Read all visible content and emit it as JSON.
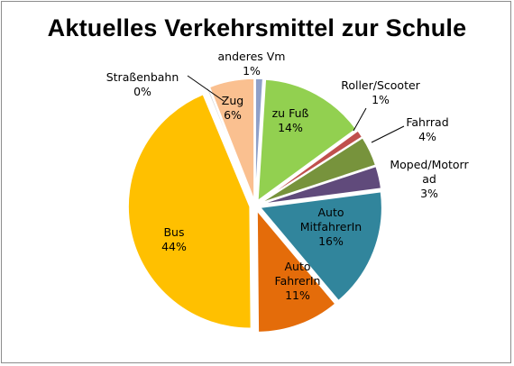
{
  "chart_data": {
    "type": "pie",
    "title": "Aktuelles Verkehrsmittel zur Schule",
    "slices": [
      {
        "name": "anderes Vm",
        "label_lines": [
          "anderes Vm"
        ],
        "pct_label": "1%",
        "value": 1,
        "color": "#8FA0C8"
      },
      {
        "name": "zu Fuß",
        "label_lines": [
          "zu Fuß"
        ],
        "pct_label": "14%",
        "value": 14,
        "color": "#92D050"
      },
      {
        "name": "Roller/Scooter",
        "label_lines": [
          "Roller/Scooter"
        ],
        "pct_label": "1%",
        "value": 1,
        "color": "#C0504D"
      },
      {
        "name": "Fahrrad",
        "label_lines": [
          "Fahrrad"
        ],
        "pct_label": "4%",
        "value": 4,
        "color": "#77933C"
      },
      {
        "name": "Moped/Motorrad",
        "label_lines": [
          "Moped/Motorr",
          "ad"
        ],
        "pct_label": "3%",
        "value": 3,
        "color": "#604A7B"
      },
      {
        "name": "Auto MitfahrerIn",
        "label_lines": [
          "Auto",
          "MitfahrerIn"
        ],
        "pct_label": "16%",
        "value": 16,
        "color": "#31859C"
      },
      {
        "name": "Auto FahrerIn",
        "label_lines": [
          "Auto",
          "FahrerIn"
        ],
        "pct_label": "11%",
        "value": 11,
        "color": "#E46C0A"
      },
      {
        "name": "Bus",
        "label_lines": [
          "Bus"
        ],
        "pct_label": "44%",
        "value": 44,
        "color": "#FFC000"
      },
      {
        "name": "Straßenbahn",
        "label_lines": [
          "Straßenbahn"
        ],
        "pct_label": "0%",
        "value": 0.3,
        "color": "#D9D9D9"
      },
      {
        "name": "Zug",
        "label_lines": [
          "Zug"
        ],
        "pct_label": "6%",
        "value": 6,
        "color": "#FAC090"
      }
    ]
  }
}
